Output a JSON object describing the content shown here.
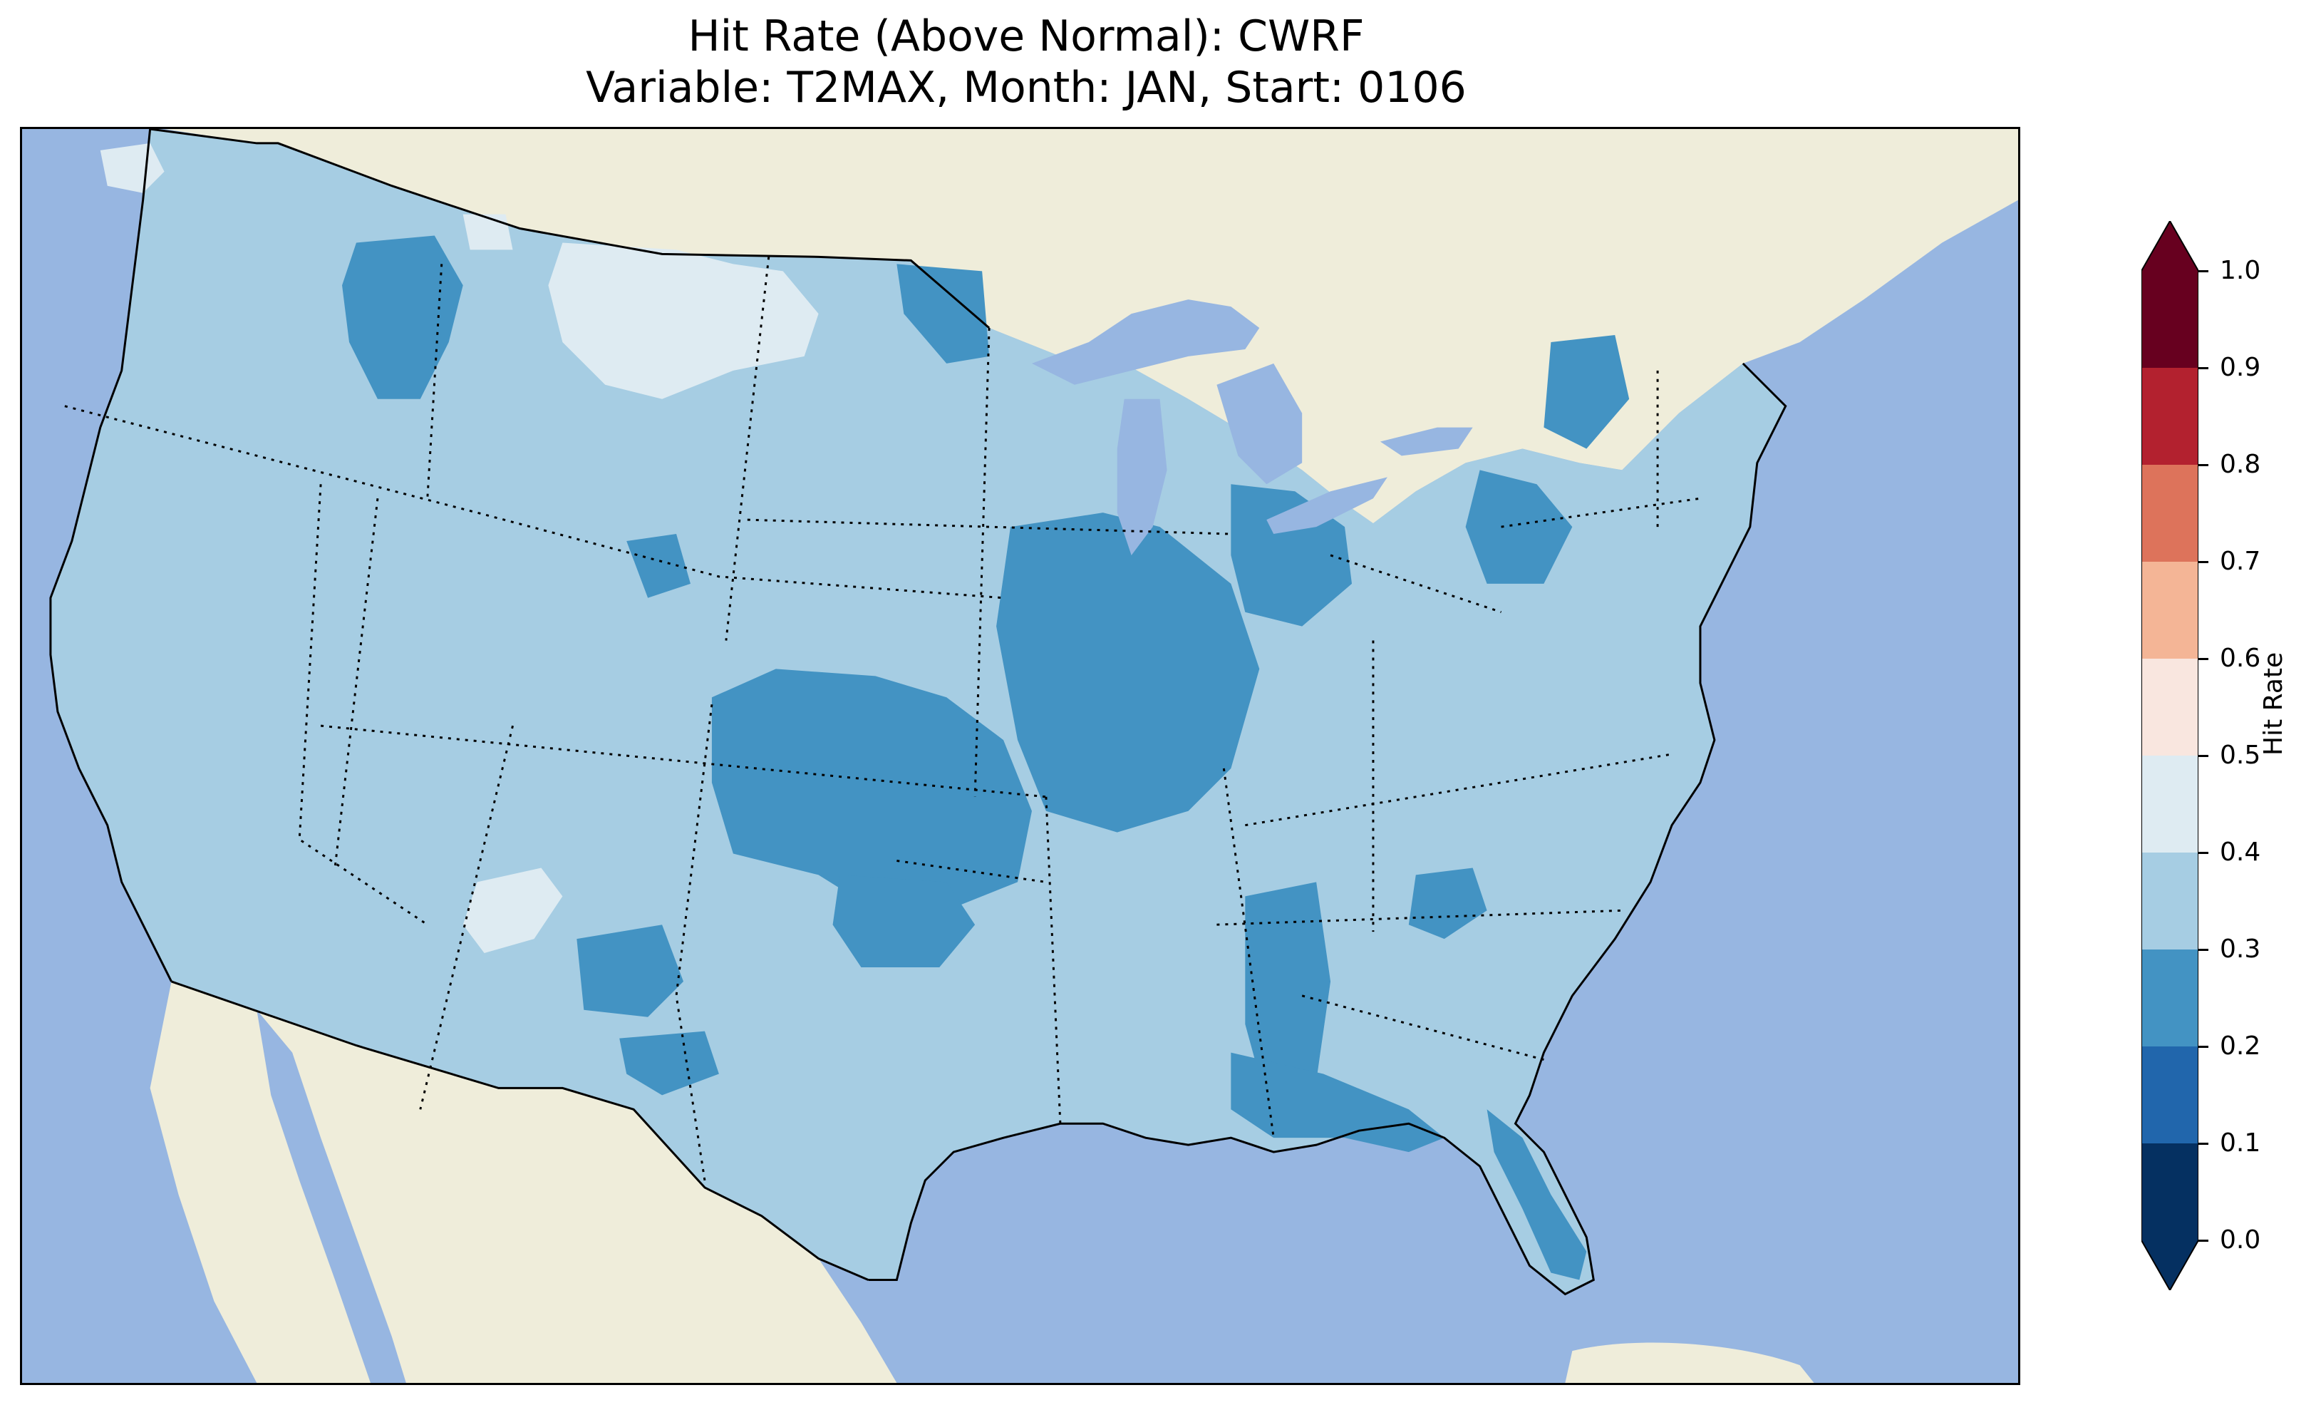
{
  "title": {
    "line1": "Hit Rate (Above Normal): CWRF",
    "line2": "Variable: T2MAX, Month: JAN, Start: 0106"
  },
  "colors": {
    "ocean": "#97b6e1",
    "land": "#efedda",
    "lakes": "#97b6e1"
  },
  "map": {
    "region": "Contiguous United States",
    "features": [
      "coastlines",
      "state borders (dotted)",
      "international borders",
      "lakes",
      "ocean"
    ],
    "dominant_bin": "0.3–0.4",
    "lower_bin_areas": "0.2–0.3",
    "higher_bin_areas": "0.4–0.5"
  },
  "colorbar": {
    "label": "Hit Rate",
    "extend": "both",
    "ticks": [
      "0.0",
      "0.1",
      "0.2",
      "0.3",
      "0.4",
      "0.5",
      "0.6",
      "0.7",
      "0.8",
      "0.9",
      "1.0"
    ],
    "bins": [
      {
        "range": [
          0.0,
          0.1
        ],
        "color": "#053061"
      },
      {
        "range": [
          0.1,
          0.2
        ],
        "color": "#2166ac"
      },
      {
        "range": [
          0.2,
          0.3
        ],
        "color": "#4393c3"
      },
      {
        "range": [
          0.3,
          0.4
        ],
        "color": "#a6cde3"
      },
      {
        "range": [
          0.4,
          0.5
        ],
        "color": "#deebf2"
      },
      {
        "range": [
          0.5,
          0.6
        ],
        "color": "#f9e6df"
      },
      {
        "range": [
          0.6,
          0.7
        ],
        "color": "#f4b596"
      },
      {
        "range": [
          0.7,
          0.8
        ],
        "color": "#dd735b"
      },
      {
        "range": [
          0.8,
          0.9
        ],
        "color": "#b3212f"
      },
      {
        "range": [
          0.9,
          1.0
        ],
        "color": "#67001f"
      }
    ],
    "under_color": "#053061",
    "over_color": "#67001f"
  }
}
